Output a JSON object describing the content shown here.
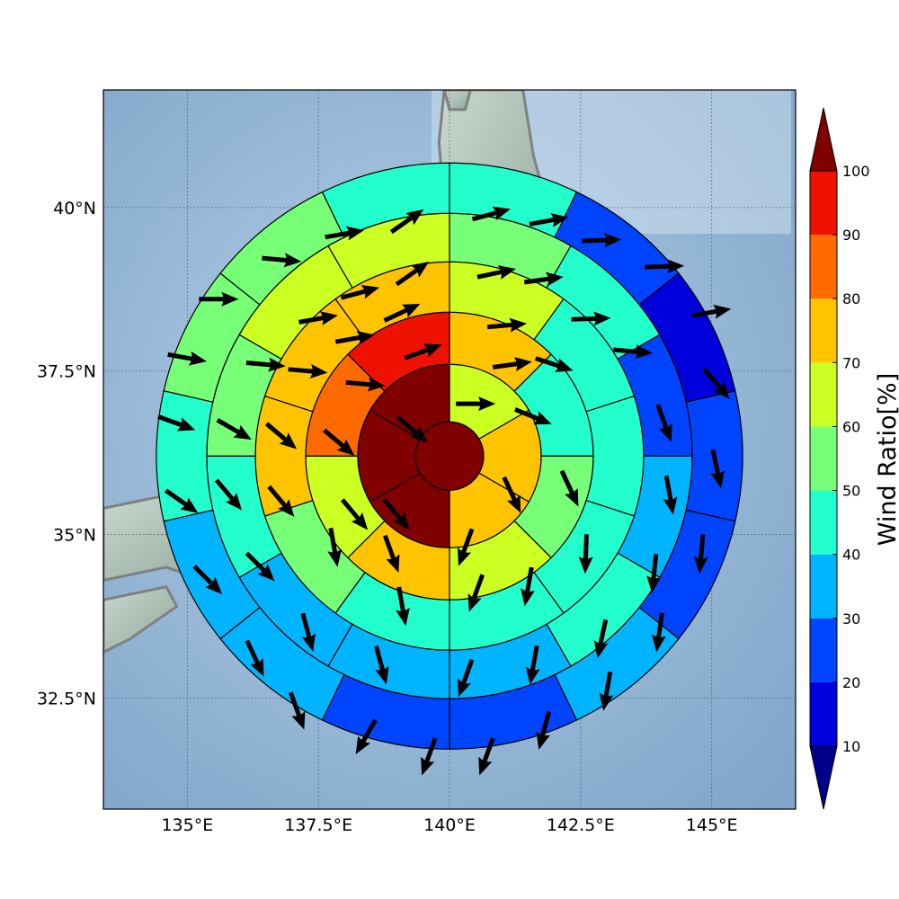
{
  "map": {
    "lon_range": [
      133.4,
      146.6
    ],
    "lat_range": [
      30.8,
      41.8
    ],
    "lon_ticks": [
      {
        "value": 135,
        "label": "135°E"
      },
      {
        "value": 137.5,
        "label": "137.5°E"
      },
      {
        "value": 140,
        "label": "140°E"
      },
      {
        "value": 142.5,
        "label": "142.5°E"
      },
      {
        "value": 145,
        "label": "145°E"
      }
    ],
    "lat_ticks": [
      {
        "value": 40,
        "label": "40°N"
      },
      {
        "value": 37.5,
        "label": "37.5°N"
      },
      {
        "value": 35,
        "label": "35°N"
      },
      {
        "value": 32.5,
        "label": "32.5°N"
      }
    ],
    "grid": true,
    "basemap": "shaded-relief",
    "sea_color": "#9bbad6",
    "coastline_color": "#808080"
  },
  "polar_grid": {
    "center_lon": 140.0,
    "center_lat": 36.2,
    "ring_count": 6,
    "rings": [
      {
        "sectors": 1,
        "ratios": [
          100
        ]
      },
      {
        "sectors": 6,
        "ratios": [
          60,
          75,
          70,
          100,
          100,
          100
        ]
      },
      {
        "sectors": 8,
        "ratios": [
          70,
          45,
          55,
          60,
          75,
          65,
          85,
          90
        ]
      },
      {
        "sectors": 10,
        "ratios": [
          65,
          45,
          40,
          45,
          40,
          40,
          55,
          75,
          70,
          75
        ]
      },
      {
        "sectors": 12,
        "ratios": [
          55,
          40,
          20,
          35,
          40,
          35,
          35,
          30,
          45,
          55,
          60,
          60
        ]
      },
      {
        "sectors": 14,
        "ratios": [
          45,
          25,
          15,
          20,
          25,
          30,
          25,
          20,
          30,
          35,
          45,
          50,
          55,
          45
        ]
      }
    ],
    "cell_edge_color": "#000000"
  },
  "colorbar": {
    "label": "Wind Ratio[%]",
    "ticks": [
      10,
      20,
      30,
      40,
      50,
      60,
      70,
      80,
      90,
      100
    ],
    "levels": [
      {
        "from": 10,
        "to": 20,
        "color": "#0000dd"
      },
      {
        "from": 20,
        "to": 30,
        "color": "#0044ff"
      },
      {
        "from": 30,
        "to": 40,
        "color": "#00b4ff"
      },
      {
        "from": 40,
        "to": 50,
        "color": "#22ffcc"
      },
      {
        "from": 50,
        "to": 60,
        "color": "#77ff77"
      },
      {
        "from": 60,
        "to": 70,
        "color": "#ccff22"
      },
      {
        "from": 70,
        "to": 80,
        "color": "#ffc400"
      },
      {
        "from": 80,
        "to": 90,
        "color": "#ff6a00"
      },
      {
        "from": 90,
        "to": 100,
        "color": "#ee1100"
      }
    ],
    "under_color": "#00008b",
    "over_color": "#800000"
  },
  "vectors": {
    "color": "#000000",
    "items": [
      [
        140.8,
        39.9,
        75
      ],
      [
        141.9,
        39.8,
        80
      ],
      [
        142.9,
        39.5,
        88
      ],
      [
        139.2,
        39.8,
        55
      ],
      [
        138.0,
        39.6,
        80
      ],
      [
        136.8,
        39.2,
        95
      ],
      [
        135.6,
        38.6,
        90
      ],
      [
        135.0,
        37.7,
        100
      ],
      [
        134.8,
        36.7,
        110
      ],
      [
        134.9,
        35.5,
        125
      ],
      [
        135.4,
        34.3,
        135
      ],
      [
        136.3,
        33.1,
        155
      ],
      [
        137.1,
        32.3,
        160
      ],
      [
        138.4,
        31.9,
        210
      ],
      [
        139.6,
        31.6,
        200
      ],
      [
        140.7,
        31.6,
        200
      ],
      [
        141.8,
        32.0,
        195
      ],
      [
        143.0,
        32.6,
        190
      ],
      [
        144.0,
        33.5,
        188
      ],
      [
        144.8,
        34.7,
        185
      ],
      [
        145.1,
        36.0,
        168
      ],
      [
        145.1,
        37.3,
        140
      ],
      [
        145.0,
        38.4,
        80
      ],
      [
        144.1,
        39.1,
        88
      ],
      [
        140.9,
        39.0,
        78
      ],
      [
        141.8,
        38.9,
        82
      ],
      [
        142.7,
        38.3,
        88
      ],
      [
        139.3,
        39.0,
        55
      ],
      [
        138.3,
        38.7,
        75
      ],
      [
        137.5,
        38.3,
        80
      ],
      [
        136.5,
        37.6,
        95
      ],
      [
        135.9,
        36.6,
        120
      ],
      [
        135.8,
        35.6,
        140
      ],
      [
        136.4,
        34.5,
        135
      ],
      [
        137.3,
        33.5,
        165
      ],
      [
        138.7,
        33.0,
        165
      ],
      [
        140.3,
        32.8,
        200
      ],
      [
        141.6,
        33.0,
        190
      ],
      [
        142.9,
        33.4,
        192
      ],
      [
        143.9,
        34.4,
        186
      ],
      [
        144.2,
        35.6,
        170
      ],
      [
        144.1,
        36.7,
        160
      ],
      [
        143.5,
        37.8,
        95
      ],
      [
        142.0,
        37.6,
        108
      ],
      [
        141.1,
        38.2,
        85
      ],
      [
        139.1,
        38.4,
        65
      ],
      [
        138.2,
        38.0,
        80
      ],
      [
        137.3,
        37.5,
        95
      ],
      [
        136.8,
        36.5,
        130
      ],
      [
        136.8,
        35.5,
        140
      ],
      [
        137.8,
        34.8,
        170
      ],
      [
        139.1,
        33.9,
        170
      ],
      [
        140.5,
        34.1,
        200
      ],
      [
        141.5,
        34.2,
        190
      ],
      [
        142.6,
        34.7,
        182
      ],
      [
        142.3,
        35.7,
        155
      ],
      [
        141.6,
        36.8,
        112
      ],
      [
        140.5,
        37.0,
        90
      ],
      [
        141.2,
        37.6,
        82
      ],
      [
        139.5,
        37.8,
        70
      ],
      [
        138.4,
        37.3,
        95
      ],
      [
        137.9,
        36.4,
        130
      ],
      [
        138.2,
        35.3,
        140
      ],
      [
        138.9,
        34.7,
        160
      ],
      [
        140.3,
        34.8,
        200
      ],
      [
        141.2,
        35.6,
        155
      ],
      [
        139.3,
        36.6,
        130
      ],
      [
        139.0,
        35.3,
        140
      ]
    ]
  }
}
